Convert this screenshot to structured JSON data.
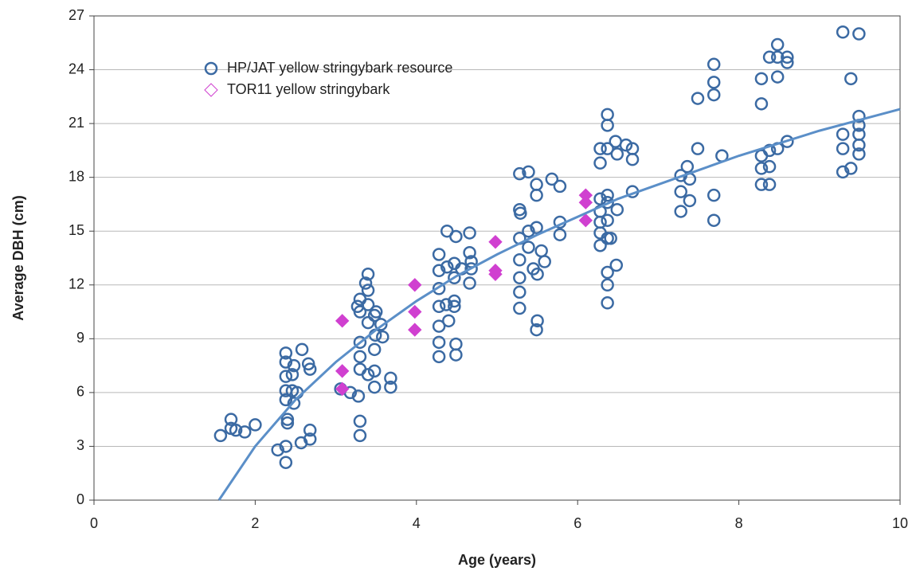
{
  "chart_data": {
    "type": "scatter",
    "xlabel": "Age (years)",
    "ylabel": "Average DBH (cm)",
    "xlim": [
      0,
      10
    ],
    "xticks": [
      0,
      2,
      4,
      6,
      8,
      10
    ],
    "ylim": [
      0,
      27
    ],
    "yticks": [
      0,
      3,
      6,
      9,
      12,
      15,
      18,
      21,
      24,
      27
    ],
    "grid": true,
    "legend": "upper left",
    "series": [
      {
        "name": "HP/JAT yellow stringybark resource",
        "color": "#3b6aa3",
        "marker": "circle",
        "x": [
          1.57,
          1.7,
          1.7,
          1.76,
          1.87,
          2.0,
          2.28,
          2.38,
          2.38,
          2.4,
          2.4,
          2.38,
          2.38,
          2.38,
          2.38,
          2.46,
          2.46,
          2.48,
          2.48,
          2.58,
          2.57,
          2.66,
          2.68,
          2.68,
          2.68,
          2.52,
          2.38,
          3.06,
          3.18,
          3.28,
          3.3,
          3.3,
          3.3,
          3.3,
          3.3,
          3.3,
          3.37,
          3.4,
          3.4,
          3.4,
          3.4,
          3.4,
          3.48,
          3.48,
          3.48,
          3.5,
          3.56,
          3.58,
          3.49,
          3.48,
          3.68,
          3.68,
          3.27,
          3.3,
          4.28,
          4.28,
          4.28,
          4.28,
          4.28,
          4.28,
          4.28,
          4.37,
          4.38,
          4.38,
          4.4,
          4.49,
          4.47,
          4.47,
          4.47,
          4.47,
          4.49,
          4.49,
          4.66,
          4.66,
          4.68,
          4.68,
          4.66,
          4.56,
          5.28,
          5.39,
          5.28,
          5.29,
          5.28,
          5.28,
          5.28,
          5.28,
          5.28,
          5.39,
          5.39,
          5.45,
          5.49,
          5.49,
          5.49,
          5.5,
          5.49,
          5.55,
          5.59,
          5.5,
          5.68,
          5.78,
          5.78,
          5.78,
          6.28,
          6.28,
          6.28,
          6.28,
          6.28,
          6.28,
          6.28,
          6.37,
          6.37,
          6.37,
          6.37,
          6.37,
          6.37,
          6.37,
          6.37,
          6.37,
          6.37,
          6.49,
          6.47,
          6.49,
          6.48,
          6.6,
          6.68,
          6.68,
          6.68,
          6.41,
          7.28,
          7.28,
          7.28,
          7.36,
          7.39,
          7.39,
          7.49,
          7.49,
          7.69,
          7.69,
          7.69,
          7.69,
          7.69,
          7.79,
          8.28,
          8.28,
          8.28,
          8.28,
          8.28,
          8.38,
          8.38,
          8.38,
          8.38,
          8.48,
          8.48,
          8.48,
          8.48,
          8.6,
          8.6,
          8.6,
          9.29,
          9.29,
          9.29,
          9.29,
          9.39,
          9.39,
          9.49,
          9.49,
          9.49,
          9.49,
          9.49,
          9.49
        ],
        "values": [
          3.6,
          4.5,
          4.0,
          3.9,
          3.8,
          4.2,
          2.8,
          2.1,
          3.0,
          4.3,
          4.5,
          6.1,
          6.9,
          7.7,
          8.2,
          7.0,
          6.1,
          5.4,
          7.5,
          8.4,
          3.2,
          7.6,
          7.3,
          3.9,
          3.4,
          6.0,
          5.6,
          6.2,
          6.0,
          5.8,
          4.4,
          3.6,
          7.3,
          8.8,
          11.2,
          10.5,
          12.1,
          12.6,
          11.7,
          10.9,
          9.9,
          7.0,
          6.3,
          8.4,
          10.3,
          10.5,
          9.8,
          9.1,
          9.2,
          7.2,
          6.8,
          6.3,
          10.8,
          8.0,
          13.7,
          12.8,
          11.8,
          10.8,
          9.7,
          8.8,
          8.0,
          10.9,
          15.0,
          13.0,
          10.0,
          14.7,
          13.2,
          12.4,
          11.1,
          10.8,
          8.7,
          8.1,
          14.9,
          13.8,
          13.3,
          12.9,
          12.1,
          12.9,
          18.2,
          18.3,
          16.2,
          16.0,
          14.6,
          13.4,
          12.4,
          11.6,
          10.7,
          15.0,
          14.1,
          12.9,
          15.2,
          17.6,
          17.0,
          10.0,
          9.5,
          13.9,
          13.3,
          12.6,
          17.9,
          17.5,
          15.5,
          14.8,
          19.6,
          18.8,
          16.8,
          16.1,
          15.5,
          14.9,
          14.2,
          21.5,
          20.9,
          19.6,
          17.0,
          16.6,
          15.6,
          14.6,
          12.7,
          12.0,
          11.0,
          16.2,
          20.0,
          19.3,
          13.1,
          19.8,
          19.6,
          19.0,
          17.2,
          14.6,
          18.1,
          17.2,
          16.1,
          18.6,
          17.9,
          16.7,
          22.4,
          19.6,
          24.3,
          23.3,
          22.6,
          17.0,
          15.6,
          19.2,
          23.5,
          22.1,
          19.2,
          18.5,
          17.6,
          24.7,
          19.5,
          18.6,
          17.6,
          25.4,
          24.7,
          23.6,
          19.6,
          24.7,
          24.4,
          20.0,
          26.1,
          20.4,
          19.6,
          18.3,
          23.5,
          18.5,
          26.0,
          21.4,
          20.9,
          20.4,
          19.8,
          19.3
        ]
      },
      {
        "name": "TOR11 yellow stringybark",
        "color": "#d040d0",
        "marker": "diamond",
        "x": [
          3.08,
          3.08,
          3.08,
          3.98,
          3.98,
          3.98,
          4.98,
          4.98,
          4.98,
          6.1,
          6.1,
          6.1
        ],
        "values": [
          10.0,
          7.2,
          6.2,
          12.0,
          10.5,
          9.5,
          14.4,
          12.8,
          12.6,
          17.0,
          16.6,
          15.6
        ]
      }
    ],
    "trendline": {
      "color": "#5b8fc8",
      "x": [
        1.55,
        2,
        2.5,
        3,
        3.5,
        4,
        4.5,
        5,
        5.5,
        6,
        6.5,
        7,
        7.5,
        8,
        8.5,
        9,
        9.5,
        10
      ],
      "values": [
        0,
        3.0,
        5.6,
        7.7,
        9.5,
        11.1,
        12.5,
        13.7,
        14.8,
        15.8,
        16.8,
        17.6,
        18.4,
        19.2,
        19.9,
        20.6,
        21.2,
        21.8
      ]
    }
  }
}
